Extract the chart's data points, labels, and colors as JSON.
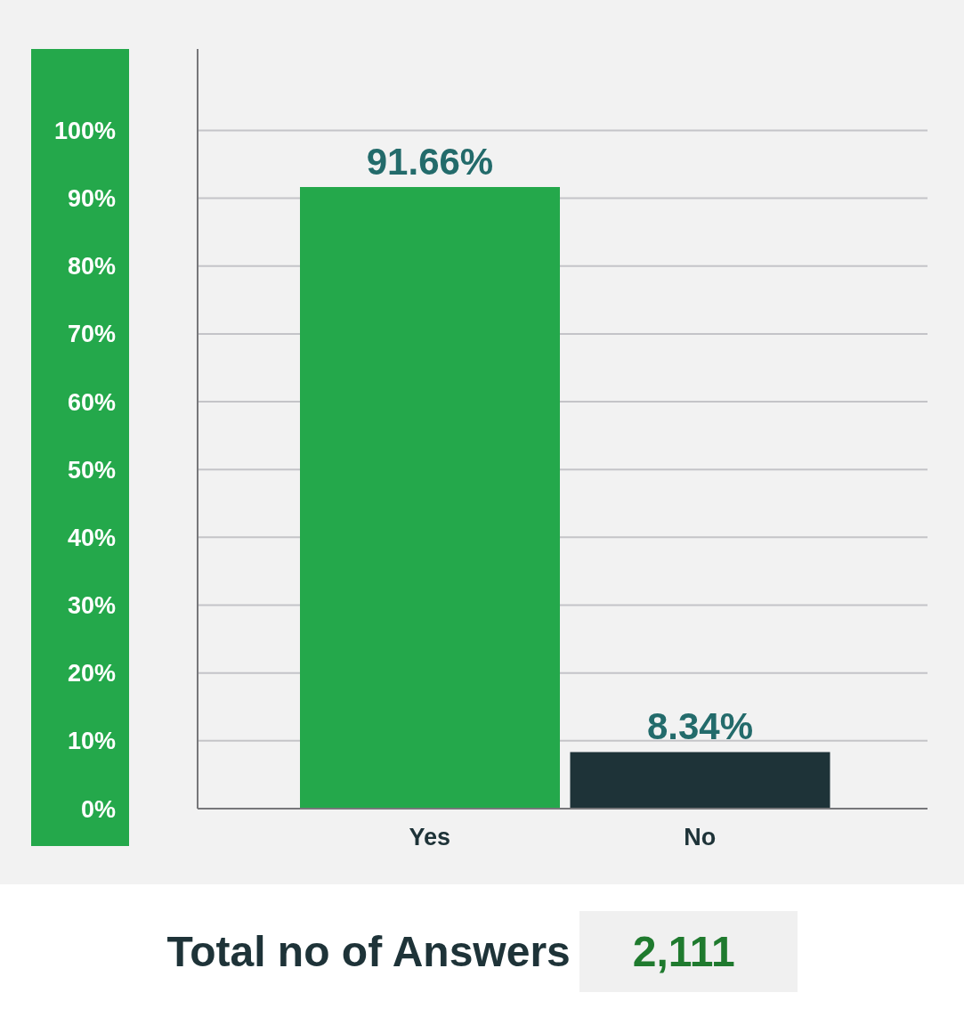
{
  "chart_data": {
    "type": "bar",
    "categories": [
      "Yes",
      "No"
    ],
    "values": [
      91.66,
      8.34
    ],
    "colors": [
      "#24a84b",
      "#1e3338"
    ],
    "value_labels": [
      "91.66%",
      "8.34%"
    ],
    "ylim": [
      0,
      112
    ],
    "yticks": [
      {
        "value": 0,
        "label": "0%"
      },
      {
        "value": 10,
        "label": "10%"
      },
      {
        "value": 20,
        "label": "20%"
      },
      {
        "value": 30,
        "label": "30%"
      },
      {
        "value": 40,
        "label": "40%"
      },
      {
        "value": 50,
        "label": "50%"
      },
      {
        "value": 60,
        "label": "60%"
      },
      {
        "value": 70,
        "label": "70%"
      },
      {
        "value": 80,
        "label": "80%"
      },
      {
        "value": 90,
        "label": "90%"
      },
      {
        "value": 100,
        "label": "100%"
      }
    ],
    "grid": "y",
    "annotations": [
      "Total no of Answers",
      "2,111"
    ]
  }
}
